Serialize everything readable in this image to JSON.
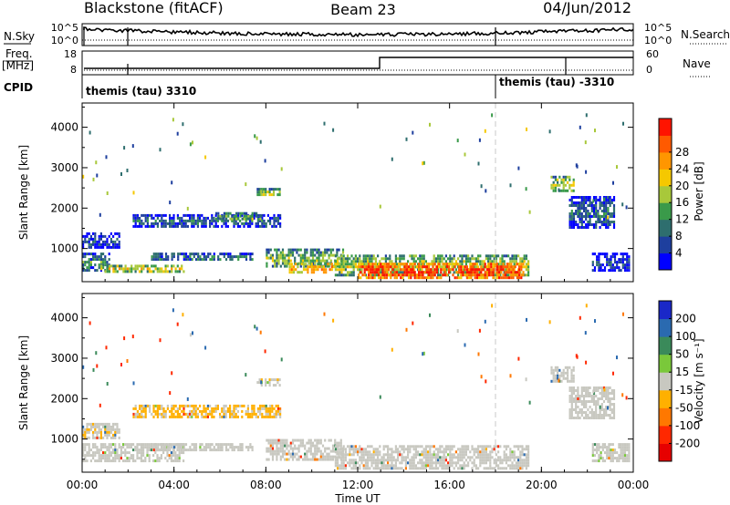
{
  "header": {
    "station": "Blackstone (fitACF)",
    "beam": "Beam 23",
    "date": "04/Jun/2012"
  },
  "ancillary": {
    "nsky_label": "N.Sky",
    "nsky_ticks": [
      "10^5",
      "10^0"
    ],
    "nsearch_label": "N.Search",
    "nsearch_ticks": [
      "10^5",
      "10^0"
    ],
    "freq_label": "Freq.",
    "freq_unit": "[MHz]",
    "freq_ticks": [
      "18",
      "8"
    ],
    "nave_label": "Nave",
    "nave_ticks": [
      "60",
      "0"
    ],
    "cpid_label": "CPID",
    "cpid_segments": [
      {
        "label": "themis (tau) 3310",
        "start_hour": 0
      },
      {
        "label": "themis (tau) -3310",
        "start_hour": 18
      }
    ]
  },
  "time_axis": {
    "label": "Time UT",
    "ticks": [
      "00:00",
      "04:00",
      "08:00",
      "12:00",
      "16:00",
      "20:00",
      "00:00"
    ]
  },
  "power_colorbar": {
    "label": "Power [dB]",
    "ticks": [
      "4",
      "8",
      "12",
      "16",
      "20",
      "24",
      "28"
    ],
    "colors": [
      "#0000ff",
      "#1e3f9e",
      "#2e6e6e",
      "#3a9a4a",
      "#a8c83a",
      "#f5c800",
      "#ff9600",
      "#ff5a00",
      "#ff1400"
    ]
  },
  "velocity_colorbar": {
    "label": "Velocity [m s⁻¹]",
    "ticks": [
      "200",
      "100",
      "50",
      "15",
      "-15",
      "-50",
      "-100",
      "-200"
    ],
    "colors": [
      "#1a28c8",
      "#2a6ab0",
      "#3a8a5a",
      "#7ac83a",
      "#c8c8c0",
      "#ffb000",
      "#ff7800",
      "#ff2800",
      "#e60000"
    ]
  },
  "chart_data": [
    {
      "type": "heatmap",
      "name": "power",
      "ylabel": "Slant Range [km]",
      "xlabel": "Time UT",
      "xlim": [
        0,
        24
      ],
      "ylim": [
        180,
        4600
      ],
      "yticks": [
        1000,
        2000,
        3000,
        4000
      ],
      "cbar_label": "Power [dB]",
      "cbar_range": [
        0,
        30
      ],
      "echo_regions": [
        {
          "t0": 0.0,
          "t1": 1.6,
          "r0": 1050,
          "r1": 1400,
          "value": 6
        },
        {
          "t0": 0.0,
          "t1": 1.2,
          "r0": 450,
          "r1": 900,
          "value": 10
        },
        {
          "t0": 0.8,
          "t1": 4.4,
          "r0": 450,
          "r1": 600,
          "value": 18
        },
        {
          "t0": 2.2,
          "t1": 8.6,
          "r0": 1550,
          "r1": 1850,
          "value": 8
        },
        {
          "t0": 3.0,
          "t1": 7.4,
          "r0": 700,
          "r1": 900,
          "value": 10
        },
        {
          "t0": 5.8,
          "t1": 7.8,
          "r0": 1700,
          "r1": 1900,
          "value": 14
        },
        {
          "t0": 7.6,
          "t1": 8.6,
          "r0": 2300,
          "r1": 2500,
          "value": 16
        },
        {
          "t0": 8.0,
          "t1": 11.4,
          "r0": 550,
          "r1": 1000,
          "value": 14
        },
        {
          "t0": 9.0,
          "t1": 11.0,
          "r0": 400,
          "r1": 650,
          "value": 22
        },
        {
          "t0": 11.0,
          "t1": 19.4,
          "r0": 350,
          "r1": 850,
          "value": 16
        },
        {
          "t0": 12.0,
          "t1": 19.2,
          "r0": 300,
          "r1": 650,
          "value": 28
        },
        {
          "t0": 20.4,
          "t1": 21.4,
          "r0": 2400,
          "r1": 2800,
          "value": 16
        },
        {
          "t0": 21.2,
          "t1": 23.2,
          "r0": 1500,
          "r1": 2300,
          "value": 8
        },
        {
          "t0": 22.2,
          "t1": 23.8,
          "r0": 450,
          "r1": 900,
          "value": 6
        }
      ]
    },
    {
      "type": "heatmap",
      "name": "velocity",
      "ylabel": "Slant Range [km]",
      "xlabel": "Time UT",
      "xlim": [
        0,
        24
      ],
      "ylim": [
        180,
        4600
      ],
      "yticks": [
        1000,
        2000,
        3000,
        4000
      ],
      "cbar_label": "Velocity [m s⁻¹]",
      "cbar_range": [
        -250,
        250
      ],
      "echo_regions": [
        {
          "t0": 0.0,
          "t1": 1.6,
          "r0": 1050,
          "r1": 1400,
          "value": -10
        },
        {
          "t0": 0.0,
          "t1": 4.4,
          "r0": 450,
          "r1": 900,
          "value": 5
        },
        {
          "t0": 2.2,
          "t1": 8.6,
          "r0": 1550,
          "r1": 1850,
          "value": -20
        },
        {
          "t0": 3.0,
          "t1": 7.4,
          "r0": 700,
          "r1": 900,
          "value": 0
        },
        {
          "t0": 7.6,
          "t1": 8.6,
          "r0": 2300,
          "r1": 2500,
          "value": -10
        },
        {
          "t0": 8.0,
          "t1": 11.4,
          "r0": 500,
          "r1": 1000,
          "value": 0
        },
        {
          "t0": 11.0,
          "t1": 19.4,
          "r0": 300,
          "r1": 850,
          "value": 0
        },
        {
          "t0": 20.4,
          "t1": 21.4,
          "r0": 2400,
          "r1": 2800,
          "value": 0
        },
        {
          "t0": 21.2,
          "t1": 23.2,
          "r0": 1500,
          "r1": 2300,
          "value": 0
        },
        {
          "t0": 22.2,
          "t1": 23.8,
          "r0": 450,
          "r1": 900,
          "value": 5
        }
      ]
    }
  ]
}
